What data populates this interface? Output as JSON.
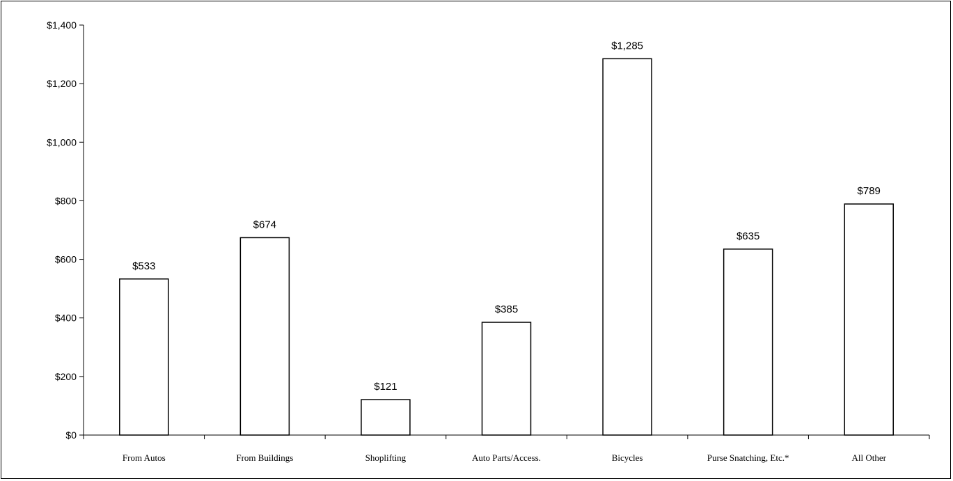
{
  "chart_data": {
    "type": "bar",
    "categories": [
      "From Autos",
      "From Buildings",
      "Shoplifting",
      "Auto Parts/Access.",
      "Bicycles",
      "Purse Snatching, Etc.*",
      "All Other"
    ],
    "values": [
      533,
      674,
      121,
      385,
      1285,
      635,
      789
    ],
    "data_labels": [
      "$533",
      "$674",
      "$121",
      "$385",
      "$1,285",
      "$635",
      "$789"
    ],
    "ylim": [
      0,
      1400
    ],
    "yticks": [
      0,
      200,
      400,
      600,
      800,
      1000,
      1200,
      1400
    ],
    "ytick_labels": [
      "$0",
      "$200",
      "$400",
      "$600",
      "$800",
      "$1,000",
      "$1,200",
      "$1,400"
    ],
    "grid": false,
    "colors": {
      "bar_fill": "#ffffff",
      "bar_stroke": "#000000",
      "axis": "#000000"
    }
  }
}
